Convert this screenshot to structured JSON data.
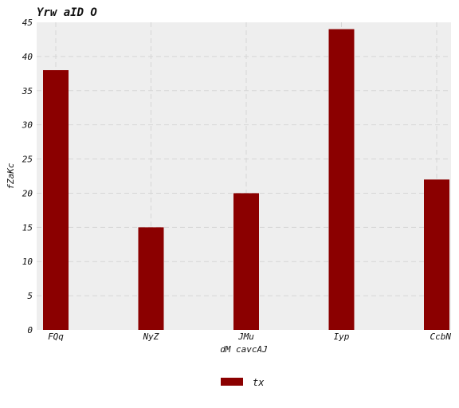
{
  "chart_data": {
    "type": "bar",
    "title": "Yrw aID O",
    "xlabel": "dM cavcAJ",
    "ylabel": "fZaKc",
    "categories": [
      "FQq",
      "NyZ",
      "JMu",
      "Iyp",
      "CcbN"
    ],
    "series": [
      {
        "name": "tx",
        "values": [
          38,
          15,
          20,
          44,
          22
        ],
        "color": "#8b0000"
      }
    ],
    "ylim": [
      0,
      45
    ],
    "yticks": [
      0,
      5,
      10,
      15,
      20,
      25,
      30,
      35,
      40,
      45
    ],
    "grid": true,
    "legend_position": "bottom-center",
    "background": "#eeeeee"
  }
}
